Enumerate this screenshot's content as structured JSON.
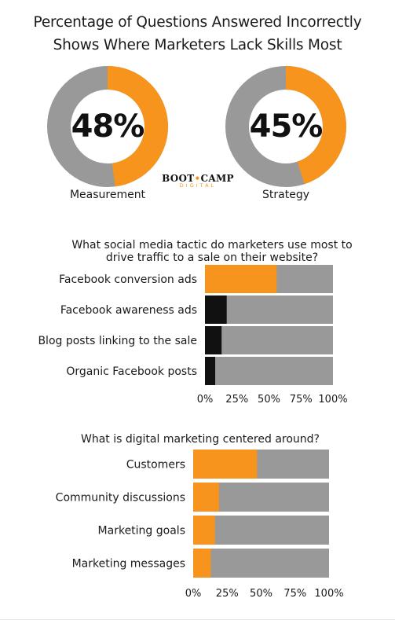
{
  "title_lines": [
    "Percentage of Questions Answered Incorrectly",
    "Shows Where Marketers Lack Skills Most"
  ],
  "logo": {
    "main_left": "BOOT",
    "dot": "•",
    "main_right": "CAMP",
    "sub": "DIGITAL"
  },
  "colors": {
    "orange": "#f7941d",
    "gray": "#999999",
    "black": "#111111"
  },
  "chart_data": [
    {
      "type": "pie",
      "label": "Measurement",
      "display": "48%",
      "value": 48
    },
    {
      "type": "pie",
      "label": "Strategy",
      "display": "45%",
      "value": 45
    },
    {
      "type": "bar",
      "title": "What social media tactic do marketers use most to drive traffic to a sale on their website?",
      "title_lines": [
        "What social media tactic do marketers use most to",
        "drive traffic to a sale on their website?"
      ],
      "categories": [
        "Facebook conversion ads",
        "Facebook awareness ads",
        "Blog posts linking to the sale",
        "Organic Facebook posts"
      ],
      "values": [
        56,
        17,
        13,
        8
      ],
      "bar_colors": [
        "#f7941d",
        "#111111",
        "#111111",
        "#111111"
      ],
      "xticks": [
        "0%",
        "25%",
        "50%",
        "75%",
        "100%"
      ],
      "xlim": [
        0,
        100
      ]
    },
    {
      "type": "bar",
      "title": "What is digital marketing centered around?",
      "title_lines": [
        "What is digital marketing centered around?"
      ],
      "categories": [
        "Customers",
        "Community discussions",
        "Marketing goals",
        "Marketing messages"
      ],
      "values": [
        47,
        19,
        16,
        13
      ],
      "bar_colors": [
        "#f7941d",
        "#f7941d",
        "#f7941d",
        "#f7941d"
      ],
      "xticks": [
        "0%",
        "25%",
        "50%",
        "75%",
        "100%"
      ],
      "xlim": [
        0,
        100
      ]
    }
  ]
}
